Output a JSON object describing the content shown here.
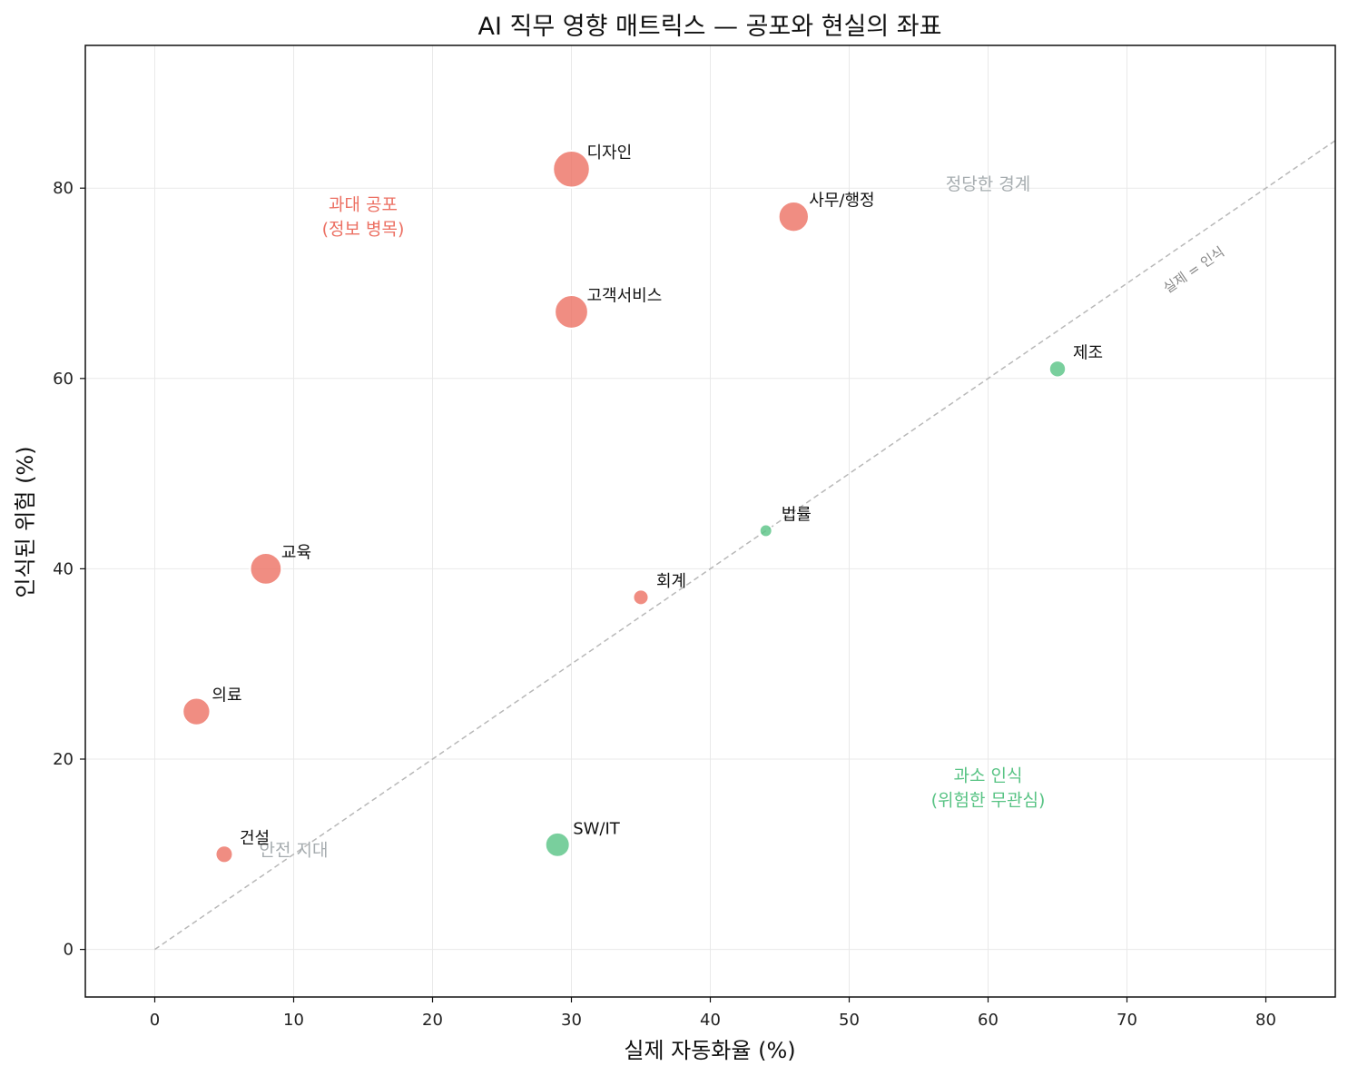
{
  "chart_data": {
    "type": "scatter",
    "title": "AI 직무 영향 매트릭스 — 공포와 현실의 좌표",
    "xlabel": "실제 자동화율 (%)",
    "ylabel": "인식된 위험 (%)",
    "xlim": [
      -5,
      85
    ],
    "ylim": [
      -5,
      95
    ],
    "xticks": [
      0,
      10,
      20,
      30,
      40,
      50,
      60,
      70,
      80
    ],
    "yticks": [
      0,
      20,
      40,
      60,
      80
    ],
    "grid": true,
    "colors": {
      "overestimated": "#ec7063",
      "underestimated": "#58c384",
      "diagonal": "#b8b8b8",
      "neutral_zone": "#a6acaf"
    },
    "points": [
      {
        "label": "디자인",
        "x": 30,
        "y": 82,
        "size": 340,
        "group": "overestimated"
      },
      {
        "label": "사무/행정",
        "x": 46,
        "y": 77,
        "size": 230,
        "group": "overestimated"
      },
      {
        "label": "고객서비스",
        "x": 30,
        "y": 67,
        "size": 280,
        "group": "overestimated"
      },
      {
        "label": "제조",
        "x": 65,
        "y": 61,
        "size": 70,
        "group": "underestimated"
      },
      {
        "label": "법률",
        "x": 44,
        "y": 44,
        "size": 40,
        "group": "underestimated"
      },
      {
        "label": "교육",
        "x": 8,
        "y": 40,
        "size": 250,
        "group": "overestimated"
      },
      {
        "label": "회계",
        "x": 35,
        "y": 37,
        "size": 60,
        "group": "overestimated"
      },
      {
        "label": "의료",
        "x": 3,
        "y": 25,
        "size": 190,
        "group": "overestimated"
      },
      {
        "label": "건설",
        "x": 5,
        "y": 10,
        "size": 75,
        "group": "overestimated"
      },
      {
        "label": "SW/IT",
        "x": 29,
        "y": 11,
        "size": 150,
        "group": "underestimated"
      }
    ],
    "diagonal": {
      "label": "실제 = 인식",
      "from": [
        0,
        0
      ],
      "to": [
        85,
        85
      ]
    },
    "zones": [
      {
        "lines": [
          "과대 공포",
          "(정보 병목)"
        ],
        "x": 15,
        "y": 77,
        "group": "overestimated"
      },
      {
        "lines": [
          "정당한 경계"
        ],
        "x": 60,
        "y": 80.5,
        "group": "neutral"
      },
      {
        "lines": [
          "과소 인식",
          "(위험한 무관심)"
        ],
        "x": 60,
        "y": 17,
        "group": "underestimated"
      },
      {
        "lines": [
          "안전 지대"
        ],
        "x": 10,
        "y": 10.5,
        "group": "neutral"
      }
    ]
  }
}
